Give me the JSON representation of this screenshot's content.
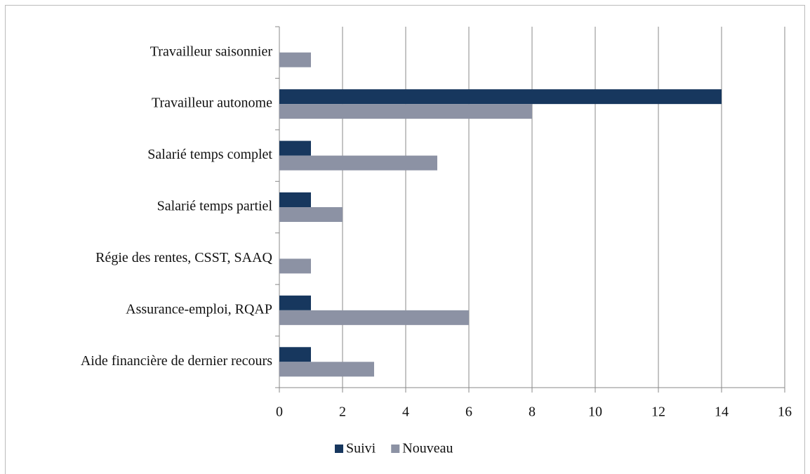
{
  "chart_data": {
    "type": "hbar",
    "categories": [
      "Travailleur saisonnier",
      "Travailleur autonome",
      "Salarié temps complet",
      "Salarié temps partiel",
      "Régie des rentes, CSST, SAAQ",
      "Assurance-emploi, RQAP",
      "Aide financière de dernier recours"
    ],
    "series": [
      {
        "name": "Suivi",
        "color": "#17375e",
        "values": [
          0,
          14,
          1,
          1,
          0,
          1,
          1
        ]
      },
      {
        "name": "Nouveau",
        "color": "#8c92a4",
        "values": [
          1,
          8,
          5,
          2,
          1,
          6,
          3
        ]
      }
    ],
    "xlim": [
      0,
      16
    ],
    "xticks": [
      0,
      2,
      4,
      6,
      8,
      10,
      12,
      14,
      16
    ],
    "grid": true,
    "legend": "bottom"
  }
}
